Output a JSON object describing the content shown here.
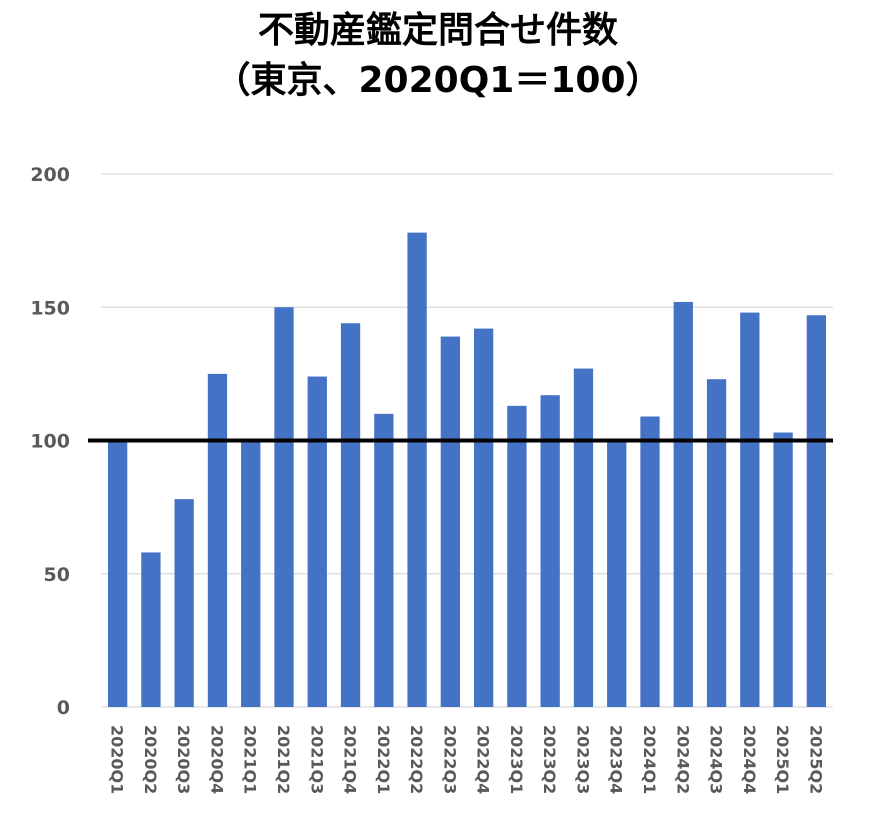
{
  "chart_data": {
    "type": "bar",
    "title": "不動産鑑定問合せ件数",
    "subtitle": "（東京、2020Q1＝100）",
    "xlabel": "",
    "ylabel": "",
    "ylim": [
      0,
      200
    ],
    "yticks": [
      0,
      50,
      100,
      150,
      200
    ],
    "grid": true,
    "legend": "none",
    "reference_line": 100,
    "categories": [
      "2020Q1",
      "2020Q2",
      "2020Q3",
      "2020Q4",
      "2021Q1",
      "2021Q2",
      "2021Q3",
      "2021Q4",
      "2022Q1",
      "2022Q2",
      "2022Q3",
      "2022Q4",
      "2023Q1",
      "2023Q2",
      "2023Q3",
      "2023Q4",
      "2024Q1",
      "2024Q2",
      "2024Q3",
      "2024Q4",
      "2025Q1",
      "2025Q2"
    ],
    "values": [
      100,
      58,
      78,
      125,
      100,
      150,
      124,
      144,
      110,
      178,
      139,
      142,
      113,
      117,
      127,
      100,
      109,
      152,
      123,
      148,
      103,
      147
    ],
    "bar_color": "#4472C4",
    "reference_line_color": "#000000"
  }
}
